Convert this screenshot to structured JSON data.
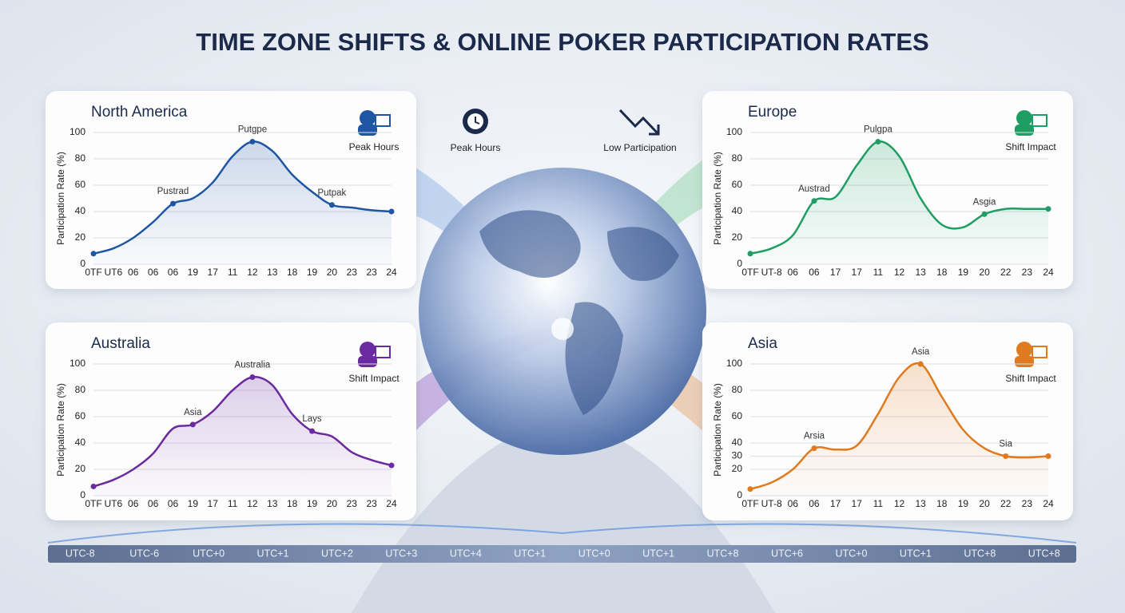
{
  "title": "TIME ZONE SHIFTS & ONLINE POKER PARTICIPATION RATES",
  "center_icons": [
    "Peak Hours",
    "Low Participation"
  ],
  "chart_data": [
    {
      "type": "line",
      "title": "North America",
      "badge": "Peak Hours",
      "ylabel": "Participation Rate (%)",
      "categories": [
        "0TF",
        "UT6",
        "06",
        "06",
        "06",
        "19",
        "17",
        "11",
        "12",
        "13",
        "18",
        "19",
        "20",
        "23",
        "23",
        "24"
      ],
      "values": [
        8,
        12,
        20,
        32,
        46,
        50,
        62,
        82,
        93,
        86,
        68,
        55,
        45,
        43,
        41,
        40
      ],
      "color": "#1f56a3",
      "ylim": [
        0,
        100
      ],
      "yticks": [
        0,
        20,
        40,
        60,
        80,
        100
      ],
      "grid": true,
      "annotations": [
        {
          "text": "Pustrad",
          "at": 4
        },
        {
          "text": "Putgpe",
          "at": 8
        },
        {
          "text": "Putpak",
          "at": 12
        }
      ]
    },
    {
      "type": "line",
      "title": "Europe",
      "badge": "Shift Impact",
      "ylabel": "Participation Rate (%)",
      "categories": [
        "0TF",
        "UT-8",
        "06",
        "06",
        "17",
        "17",
        "11",
        "12",
        "13",
        "18",
        "19",
        "20",
        "22",
        "23",
        "24"
      ],
      "values": [
        8,
        12,
        22,
        48,
        51,
        75,
        93,
        82,
        50,
        30,
        28,
        38,
        42,
        42,
        42
      ],
      "color": "#1e9e63",
      "ylim": [
        0,
        100
      ],
      "yticks": [
        0,
        20,
        40,
        60,
        80,
        100
      ],
      "grid": true,
      "annotations": [
        {
          "text": "Austrad",
          "at": 3
        },
        {
          "text": "Pulgpa",
          "at": 6
        },
        {
          "text": "Asgia",
          "at": 11
        }
      ]
    },
    {
      "type": "line",
      "title": "Australia",
      "badge": "Shift Impact",
      "ylabel": "Participation Rate (%)",
      "categories": [
        "0TF",
        "UT6",
        "06",
        "06",
        "06",
        "19",
        "17",
        "11",
        "12",
        "13",
        "18",
        "19",
        "20",
        "23",
        "23",
        "24"
      ],
      "values": [
        7,
        12,
        20,
        32,
        51,
        54,
        64,
        80,
        90,
        84,
        62,
        49,
        45,
        33,
        27,
        23
      ],
      "color": "#6a2aa0",
      "ylim": [
        0,
        100
      ],
      "yticks": [
        0,
        20,
        40,
        60,
        80,
        100
      ],
      "grid": true,
      "annotations": [
        {
          "text": "Asia",
          "at": 5
        },
        {
          "text": "Australia",
          "at": 8
        },
        {
          "text": "Lays",
          "at": 11
        }
      ]
    },
    {
      "type": "line",
      "title": "Asia",
      "badge": "Shift Impact",
      "ylabel": "Participation Rate (%)",
      "categories": [
        "0TF",
        "UT-8",
        "06",
        "06",
        "17",
        "17",
        "11",
        "12",
        "13",
        "18",
        "19",
        "20",
        "22",
        "23",
        "24"
      ],
      "values": [
        5,
        10,
        20,
        36,
        35,
        38,
        62,
        90,
        100,
        75,
        50,
        36,
        30,
        29,
        30
      ],
      "color": "#e07a1e",
      "ylim": [
        0,
        100
      ],
      "yticks": [
        0,
        20,
        30,
        40,
        60,
        80,
        100
      ],
      "grid": true,
      "annotations": [
        {
          "text": "Arsia",
          "at": 3
        },
        {
          "text": "Asia",
          "at": 8
        },
        {
          "text": "Sia",
          "at": 12
        }
      ]
    }
  ],
  "timeline": [
    "UTC-8",
    "UTC-6",
    "UTC+0",
    "UTC+1",
    "UTC+2",
    "UTC+3",
    "UTC+4",
    "UTC+1",
    "UTC+0",
    "UTC+1",
    "UTC+8",
    "UTC+6",
    "UTC+0",
    "UTC+1",
    "UTC+8",
    "UTC+8"
  ]
}
